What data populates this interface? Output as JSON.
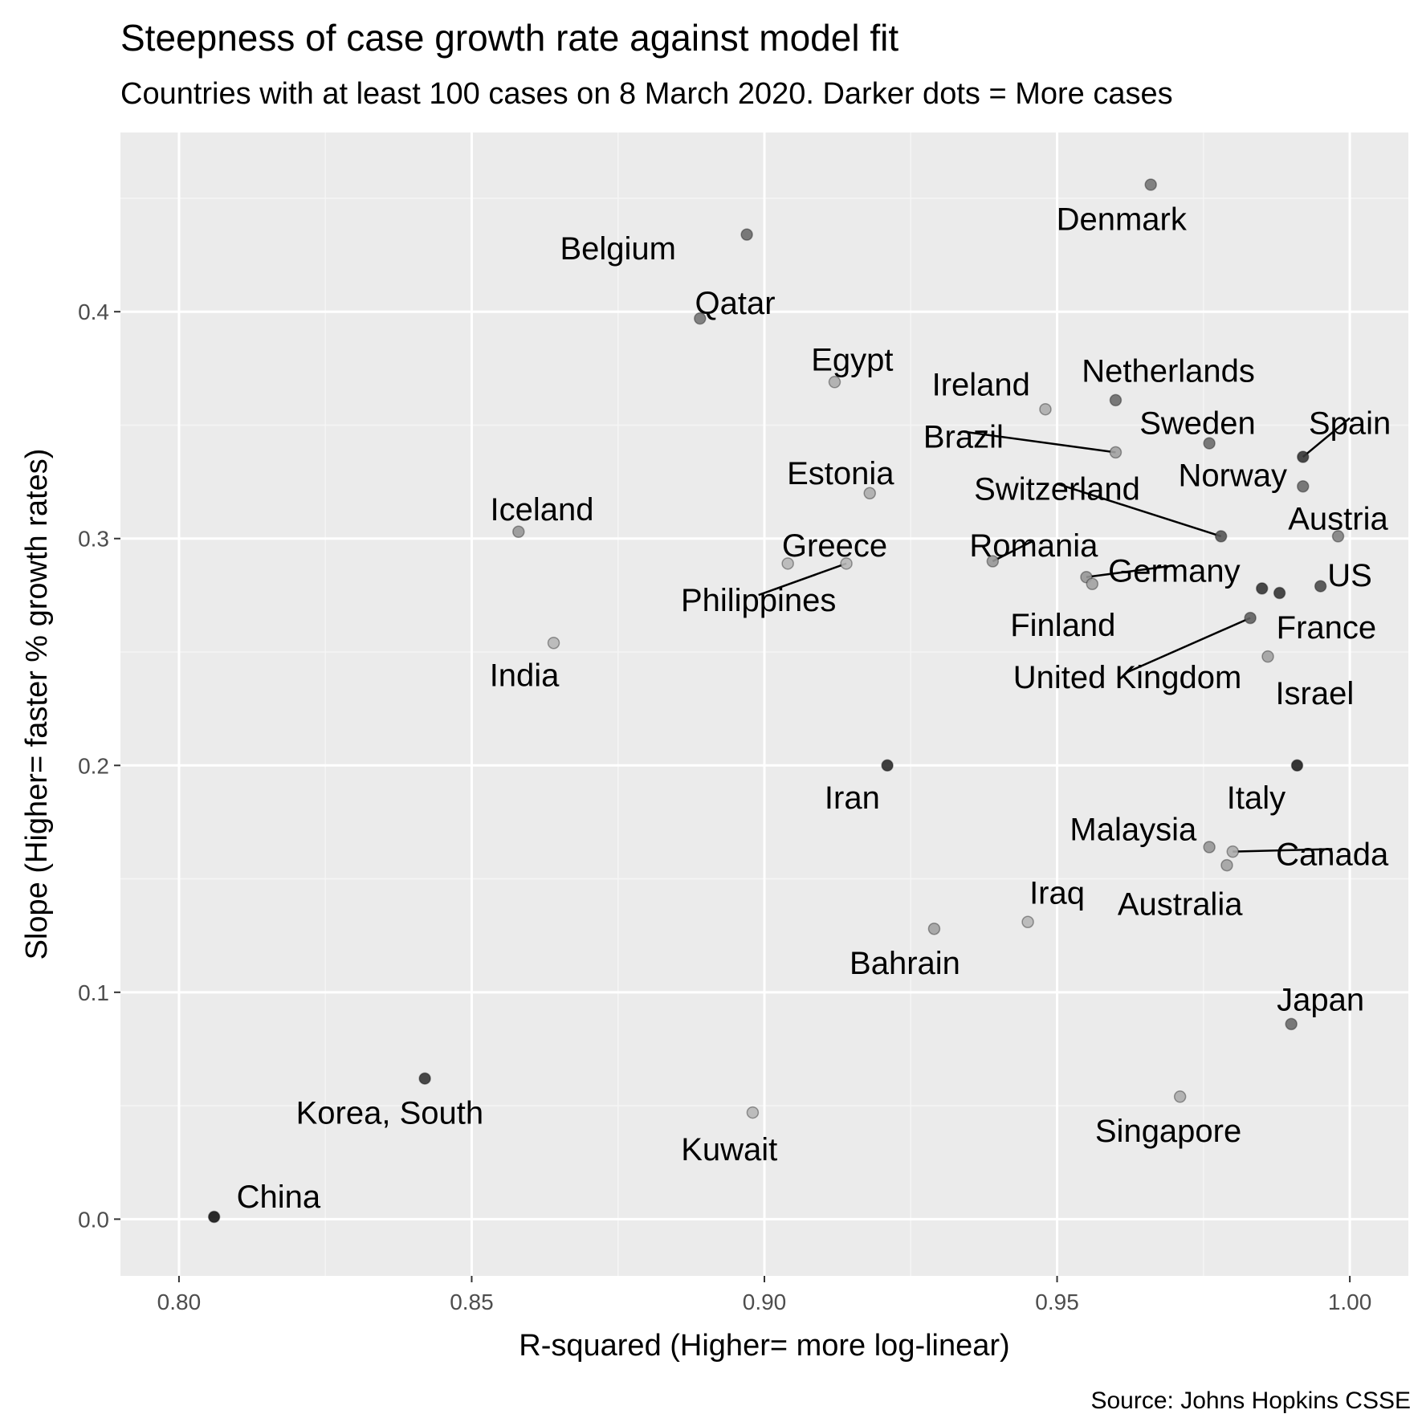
{
  "chart_data": {
    "type": "scatter",
    "title": "Steepness of case growth rate against model fit",
    "subtitle": "Countries with at least 100 cases on 8 March 2020. Darker dots = More cases",
    "caption": "Source: Johns Hopkins CSSE",
    "xlabel": "R-squared (Higher= more log-linear)",
    "ylabel": "Slope (Higher= faster % growth rates)",
    "xlim": [
      0.79,
      1.01
    ],
    "ylim": [
      -0.025,
      0.479
    ],
    "xticks": [
      0.8,
      0.85,
      0.9,
      0.95,
      1.0
    ],
    "xtick_labels": [
      "0.80",
      "0.85",
      "0.90",
      "0.95",
      "1.00"
    ],
    "yticks": [
      0.0,
      0.1,
      0.2,
      0.3,
      0.4
    ],
    "ytick_labels": [
      "0.0",
      "0.1",
      "0.2",
      "0.3",
      "0.4"
    ],
    "grid": true,
    "legend": "none",
    "points": [
      {
        "label": "Denmark",
        "x": 0.966,
        "y": 0.456,
        "shade": 0.5,
        "lx": 0.961,
        "ly": 0.441,
        "leader": false
      },
      {
        "label": "Belgium",
        "x": 0.897,
        "y": 0.434,
        "shade": 0.55,
        "lx": 0.875,
        "ly": 0.428,
        "leader": false
      },
      {
        "label": "Qatar",
        "x": 0.889,
        "y": 0.397,
        "shade": 0.5,
        "lx": 0.895,
        "ly": 0.404,
        "leader": false
      },
      {
        "label": "Egypt",
        "x": 0.912,
        "y": 0.369,
        "shade": 0.25,
        "lx": 0.915,
        "ly": 0.379,
        "leader": false
      },
      {
        "label": "Ireland",
        "x": 0.948,
        "y": 0.357,
        "shade": 0.25,
        "lx": 0.937,
        "ly": 0.368,
        "leader": false
      },
      {
        "label": "Netherlands",
        "x": 0.96,
        "y": 0.361,
        "shade": 0.55,
        "lx": 0.969,
        "ly": 0.374,
        "leader": false
      },
      {
        "label": "Sweden",
        "x": 0.976,
        "y": 0.342,
        "shade": 0.55,
        "lx": 0.974,
        "ly": 0.351,
        "leader": false
      },
      {
        "label": "Spain",
        "x": 0.992,
        "y": 0.336,
        "shade": 0.8,
        "lx": 1.0,
        "ly": 0.351,
        "leader": true
      },
      {
        "label": "Brazil",
        "x": 0.96,
        "y": 0.338,
        "shade": 0.3,
        "lx": 0.934,
        "ly": 0.345,
        "leader": true
      },
      {
        "label": "Norway",
        "x": 0.992,
        "y": 0.323,
        "shade": 0.55,
        "lx": 0.98,
        "ly": 0.328,
        "leader": false
      },
      {
        "label": "Estonia",
        "x": 0.918,
        "y": 0.32,
        "shade": 0.25,
        "lx": 0.913,
        "ly": 0.329,
        "leader": false
      },
      {
        "label": "Switzerland",
        "x": 0.978,
        "y": 0.301,
        "shade": 0.65,
        "lx": 0.95,
        "ly": 0.322,
        "leader": true
      },
      {
        "label": "Iceland",
        "x": 0.858,
        "y": 0.303,
        "shade": 0.35,
        "lx": 0.862,
        "ly": 0.313,
        "leader": false
      },
      {
        "label": "Austria",
        "x": 0.998,
        "y": 0.301,
        "shade": 0.45,
        "lx": 0.998,
        "ly": 0.309,
        "leader": false
      },
      {
        "label": "Greece",
        "x": 0.904,
        "y": 0.289,
        "shade": 0.2,
        "lx": 0.912,
        "ly": 0.297,
        "leader": false
      },
      {
        "label": "Romania",
        "x": 0.939,
        "y": 0.29,
        "shade": 0.35,
        "lx": 0.946,
        "ly": 0.297,
        "leader": true
      },
      {
        "label": "Germany",
        "x": 0.955,
        "y": 0.283,
        "shade": 0.35,
        "lx": 0.97,
        "ly": 0.286,
        "leader": true
      },
      {
        "label": "US",
        "x": 0.995,
        "y": 0.279,
        "shade": 0.7,
        "lx": 1.0,
        "ly": 0.284,
        "leader": false
      },
      {
        "label": "Philippines",
        "x": 0.914,
        "y": 0.289,
        "shade": 0.2,
        "lx": 0.899,
        "ly": 0.273,
        "leader": true
      },
      {
        "label": "Finland",
        "x": 0.956,
        "y": 0.28,
        "shade": 0.3,
        "lx": 0.951,
        "ly": 0.262,
        "leader": false
      },
      {
        "label": "France",
        "x": 0.988,
        "y": 0.276,
        "shade": 0.8,
        "lx": 0.996,
        "ly": 0.261,
        "leader": false
      },
      {
        "label": "Sweden-dot",
        "x": 0.985,
        "y": 0.278,
        "shade": 0.8,
        "lx": null,
        "ly": null,
        "leader": false
      },
      {
        "label": "United Kingdom",
        "x": 0.983,
        "y": 0.265,
        "shade": 0.6,
        "lx": 0.962,
        "ly": 0.239,
        "leader": true
      },
      {
        "label": "India",
        "x": 0.864,
        "y": 0.254,
        "shade": 0.2,
        "lx": 0.859,
        "ly": 0.24,
        "leader": false
      },
      {
        "label": "Israel",
        "x": 0.986,
        "y": 0.248,
        "shade": 0.3,
        "lx": 0.994,
        "ly": 0.232,
        "leader": false
      },
      {
        "label": "Iran",
        "x": 0.921,
        "y": 0.2,
        "shade": 0.85,
        "lx": 0.915,
        "ly": 0.186,
        "leader": false
      },
      {
        "label": "Italy",
        "x": 0.991,
        "y": 0.2,
        "shade": 0.9,
        "lx": 0.984,
        "ly": 0.186,
        "leader": false
      },
      {
        "label": "Malaysia",
        "x": 0.976,
        "y": 0.164,
        "shade": 0.35,
        "lx": 0.963,
        "ly": 0.172,
        "leader": false
      },
      {
        "label": "Canada",
        "x": 0.98,
        "y": 0.162,
        "shade": 0.25,
        "lx": 0.997,
        "ly": 0.161,
        "leader": true
      },
      {
        "label": "Australia",
        "x": 0.979,
        "y": 0.156,
        "shade": 0.3,
        "lx": 0.971,
        "ly": 0.139,
        "leader": false
      },
      {
        "label": "Iraq",
        "x": 0.945,
        "y": 0.131,
        "shade": 0.2,
        "lx": 0.95,
        "ly": 0.144,
        "leader": false
      },
      {
        "label": "Bahrain",
        "x": 0.929,
        "y": 0.128,
        "shade": 0.3,
        "lx": 0.924,
        "ly": 0.113,
        "leader": false
      },
      {
        "label": "Japan",
        "x": 0.99,
        "y": 0.086,
        "shade": 0.55,
        "lx": 0.995,
        "ly": 0.097,
        "leader": false
      },
      {
        "label": "Korea, South",
        "x": 0.842,
        "y": 0.062,
        "shade": 0.8,
        "lx": 0.836,
        "ly": 0.047,
        "leader": false
      },
      {
        "label": "Singapore",
        "x": 0.971,
        "y": 0.054,
        "shade": 0.25,
        "lx": 0.969,
        "ly": 0.039,
        "leader": false
      },
      {
        "label": "Kuwait",
        "x": 0.898,
        "y": 0.047,
        "shade": 0.2,
        "lx": 0.894,
        "ly": 0.031,
        "leader": false
      },
      {
        "label": "China",
        "x": 0.806,
        "y": 0.001,
        "shade": 0.95,
        "lx": 0.817,
        "ly": 0.01,
        "leader": false
      }
    ]
  }
}
